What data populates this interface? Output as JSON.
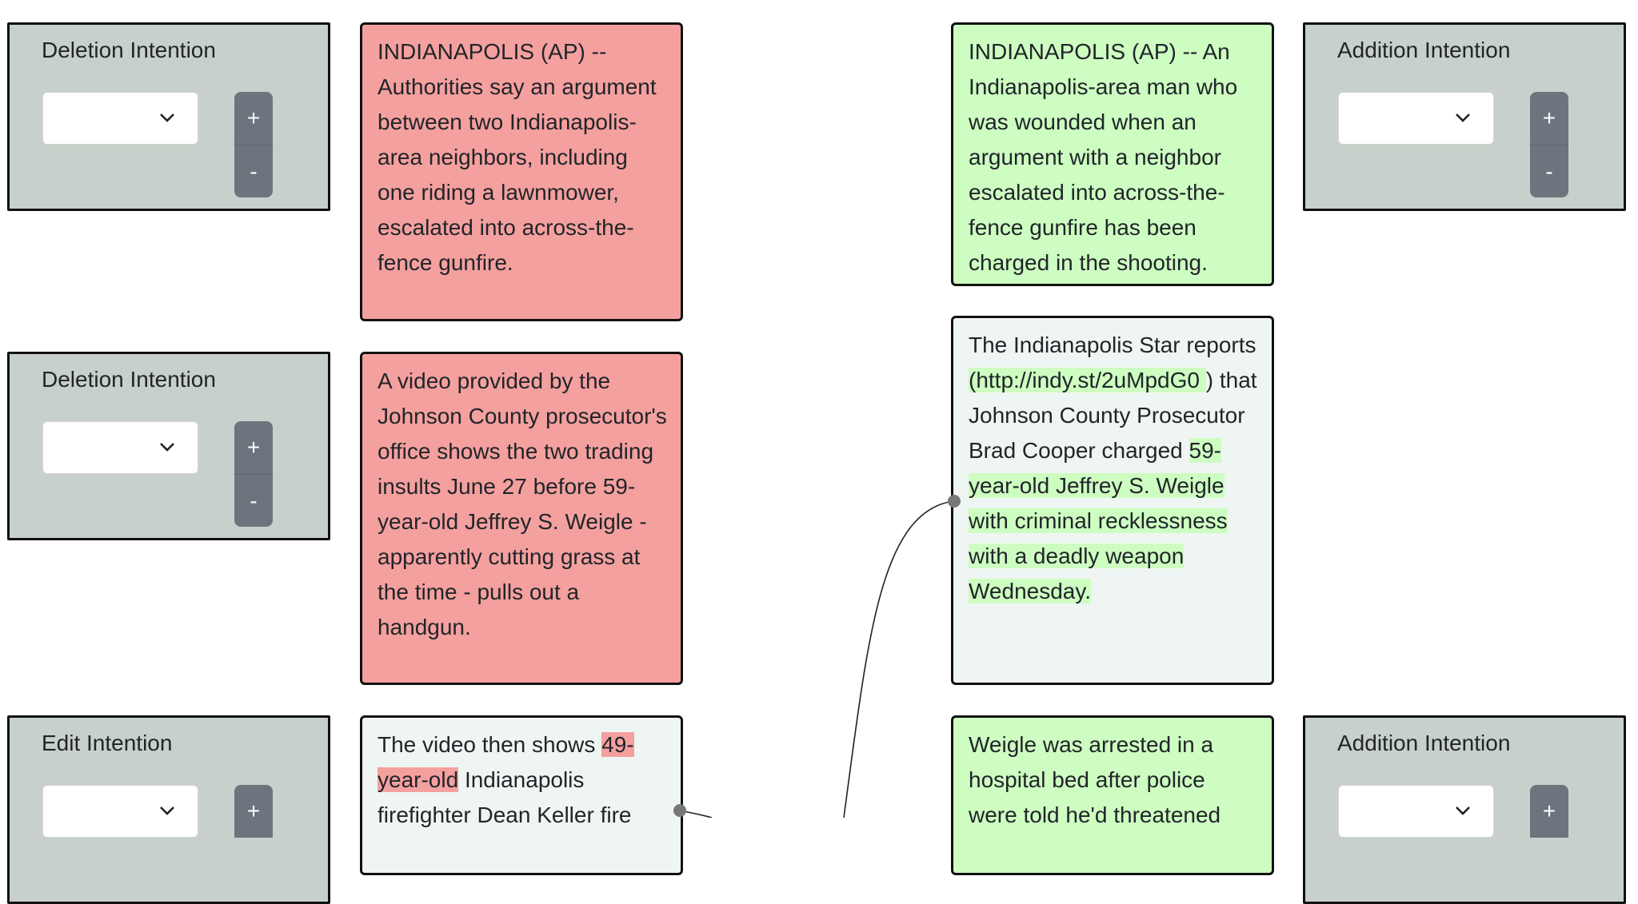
{
  "colors": {
    "panel_bg": "#c7d0ca",
    "deletion": "#f4a09f",
    "addition": "#cdfdc1",
    "neutral": "#eff5f2",
    "button": "#6c757d"
  },
  "icons": {
    "dropdown": "chevron-down-icon",
    "connector": "link-port-icon"
  },
  "buttons": {
    "plus": "+",
    "minus": "-"
  },
  "panels": [
    {
      "title": "Deletion Intention"
    },
    {
      "title": "Addition Intention"
    },
    {
      "title": "Deletion Intention"
    },
    {
      "title": "Edit Intention"
    },
    {
      "title": "Addition Intention"
    }
  ],
  "left_sentences": [
    {
      "text": "INDIANAPOLIS (AP) -- Authorities say an argument between two Indianapolis-area neighbors, including one riding a lawnmower, escalated into across-the-fence gunfire."
    },
    {
      "text": "A video provided by the Johnson County prosecutor's office shows the two trading insults June 27 before 59-year-old Jeffrey S. Weigle - apparently cutting grass at the time - pulls out a handgun."
    },
    {
      "before": "The video then shows ",
      "highlight": "49-year-old",
      "after": " Indianapolis firefighter Dean Keller fire"
    }
  ],
  "right_sentences": [
    {
      "text": "INDIANAPOLIS (AP) -- An Indianapolis-area man who was wounded when an argument with a neighbor escalated into across-the-fence gunfire has been charged in the shooting."
    },
    {
      "before": "The Indianapolis Star reports ",
      "link": "(http://indy.st/2uMpdG0 ",
      "middle": ") that Johnson County Prosecutor Brad Cooper charged ",
      "highlight": "59-year-old Jeffrey S. Weigle with criminal recklessness with a deadly weapon Wednesday."
    },
    {
      "text": "Weigle was arrested in a hospital bed after police were told he'd threatened"
    }
  ]
}
